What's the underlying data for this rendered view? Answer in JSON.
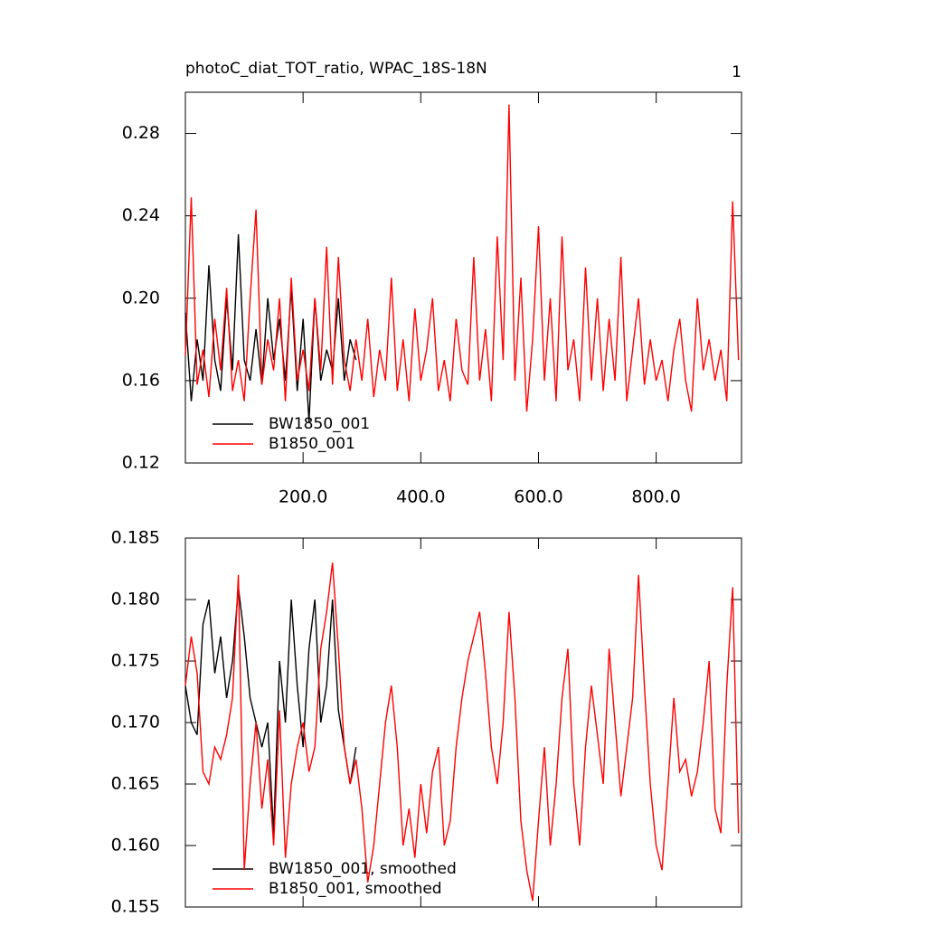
{
  "chart_data": [
    {
      "type": "line",
      "title": "photoC_diat_TOT_ratio, WPAC_18S-18N",
      "annotation": "1",
      "xlim": [
        0,
        945
      ],
      "ylim": [
        0.12,
        0.3
      ],
      "xticks": [
        {
          "value": 200,
          "label": "200.0"
        },
        {
          "value": 400,
          "label": "400.0"
        },
        {
          "value": 600,
          "label": "600.0"
        },
        {
          "value": 800,
          "label": "800.0"
        }
      ],
      "yticks": [
        0.12,
        0.16,
        {
          "value": 0.2,
          "label": "0.20"
        },
        0.24,
        0.28
      ],
      "series": [
        {
          "name": "BW1850_001",
          "color": "#000000",
          "x": [
            0,
            10,
            20,
            30,
            40,
            50,
            60,
            70,
            80,
            90,
            100,
            110,
            120,
            130,
            140,
            150,
            160,
            170,
            180,
            190,
            200,
            210,
            220,
            230,
            240,
            250,
            260,
            270,
            280,
            290
          ],
          "values": [
            0.193,
            0.15,
            0.18,
            0.16,
            0.216,
            0.17,
            0.155,
            0.2,
            0.165,
            0.231,
            0.17,
            0.16,
            0.185,
            0.158,
            0.2,
            0.17,
            0.19,
            0.16,
            0.205,
            0.155,
            0.19,
            0.14,
            0.2,
            0.16,
            0.175,
            0.165,
            0.2,
            0.16,
            0.18,
            0.17
          ]
        },
        {
          "name": "B1850_001",
          "color": "#ff0000",
          "x": [
            0,
            10,
            20,
            30,
            40,
            50,
            60,
            70,
            80,
            90,
            100,
            110,
            120,
            130,
            140,
            150,
            160,
            170,
            180,
            190,
            200,
            210,
            220,
            230,
            240,
            250,
            260,
            270,
            280,
            290,
            300,
            310,
            320,
            330,
            340,
            350,
            360,
            370,
            380,
            390,
            400,
            410,
            420,
            430,
            440,
            450,
            460,
            470,
            480,
            490,
            500,
            510,
            520,
            530,
            540,
            550,
            560,
            570,
            580,
            590,
            600,
            610,
            620,
            630,
            640,
            650,
            660,
            670,
            680,
            690,
            700,
            710,
            720,
            730,
            740,
            750,
            760,
            770,
            780,
            790,
            800,
            810,
            820,
            830,
            840,
            850,
            860,
            870,
            880,
            890,
            900,
            910,
            920,
            930,
            940
          ],
          "values": [
            0.172,
            0.249,
            0.158,
            0.175,
            0.152,
            0.19,
            0.165,
            0.205,
            0.155,
            0.17,
            0.15,
            0.2,
            0.243,
            0.158,
            0.18,
            0.165,
            0.2,
            0.15,
            0.21,
            0.16,
            0.175,
            0.155,
            0.2,
            0.165,
            0.225,
            0.158,
            0.22,
            0.17,
            0.155,
            0.18,
            0.16,
            0.19,
            0.152,
            0.175,
            0.16,
            0.21,
            0.155,
            0.18,
            0.15,
            0.195,
            0.16,
            0.175,
            0.2,
            0.155,
            0.17,
            0.15,
            0.19,
            0.165,
            0.158,
            0.22,
            0.16,
            0.185,
            0.15,
            0.23,
            0.17,
            0.294,
            0.16,
            0.21,
            0.145,
            0.18,
            0.235,
            0.16,
            0.2,
            0.15,
            0.23,
            0.165,
            0.18,
            0.15,
            0.215,
            0.16,
            0.2,
            0.155,
            0.19,
            0.16,
            0.22,
            0.15,
            0.175,
            0.2,
            0.158,
            0.18,
            0.16,
            0.17,
            0.15,
            0.175,
            0.19,
            0.16,
            0.145,
            0.2,
            0.165,
            0.18,
            0.16,
            0.175,
            0.15,
            0.247,
            0.17
          ]
        }
      ]
    },
    {
      "type": "line",
      "xlim": [
        0,
        945
      ],
      "ylim": [
        0.155,
        0.185
      ],
      "xticks": [
        200,
        400,
        600,
        800
      ],
      "yticks": [
        0.155,
        {
          "value": 0.16,
          "label": "0.160"
        },
        0.165,
        {
          "value": 0.17,
          "label": "0.170"
        },
        0.175,
        {
          "value": 0.18,
          "label": "0.180"
        },
        0.185
      ],
      "series": [
        {
          "name": "BW1850_001, smoothed",
          "color": "#000000",
          "x": [
            0,
            10,
            20,
            30,
            40,
            50,
            60,
            70,
            80,
            90,
            100,
            110,
            120,
            130,
            140,
            150,
            160,
            170,
            180,
            190,
            200,
            210,
            220,
            230,
            240,
            250,
            260,
            270,
            280,
            290
          ],
          "values": [
            0.173,
            0.17,
            0.169,
            0.178,
            0.18,
            0.174,
            0.177,
            0.172,
            0.175,
            0.181,
            0.177,
            0.172,
            0.17,
            0.168,
            0.17,
            0.161,
            0.175,
            0.17,
            0.18,
            0.173,
            0.168,
            0.176,
            0.18,
            0.17,
            0.173,
            0.18,
            0.171,
            0.168,
            0.165,
            0.168
          ]
        },
        {
          "name": "B1850_001, smoothed",
          "color": "#ff0000",
          "x": [
            0,
            10,
            20,
            30,
            40,
            50,
            60,
            70,
            80,
            90,
            100,
            110,
            120,
            130,
            140,
            150,
            160,
            170,
            180,
            190,
            200,
            210,
            220,
            230,
            240,
            250,
            260,
            270,
            280,
            290,
            300,
            310,
            320,
            330,
            340,
            350,
            360,
            370,
            380,
            390,
            400,
            410,
            420,
            430,
            440,
            450,
            460,
            470,
            480,
            490,
            500,
            510,
            520,
            530,
            540,
            550,
            560,
            570,
            580,
            590,
            600,
            610,
            620,
            630,
            640,
            650,
            660,
            670,
            680,
            690,
            700,
            710,
            720,
            730,
            740,
            750,
            760,
            770,
            780,
            790,
            800,
            810,
            820,
            830,
            840,
            850,
            860,
            870,
            880,
            890,
            900,
            910,
            920,
            930,
            940
          ],
          "values": [
            0.173,
            0.177,
            0.174,
            0.166,
            0.165,
            0.168,
            0.167,
            0.169,
            0.172,
            0.182,
            0.158,
            0.165,
            0.17,
            0.163,
            0.167,
            0.16,
            0.171,
            0.159,
            0.165,
            0.168,
            0.17,
            0.166,
            0.168,
            0.176,
            0.179,
            0.183,
            0.176,
            0.168,
            0.165,
            0.167,
            0.163,
            0.157,
            0.16,
            0.165,
            0.17,
            0.173,
            0.168,
            0.16,
            0.163,
            0.159,
            0.165,
            0.161,
            0.166,
            0.168,
            0.16,
            0.162,
            0.168,
            0.172,
            0.175,
            0.177,
            0.179,
            0.174,
            0.168,
            0.165,
            0.17,
            0.179,
            0.172,
            0.162,
            0.158,
            0.1555,
            0.162,
            0.168,
            0.16,
            0.165,
            0.172,
            0.176,
            0.165,
            0.16,
            0.168,
            0.173,
            0.169,
            0.165,
            0.176,
            0.17,
            0.164,
            0.168,
            0.172,
            0.182,
            0.173,
            0.165,
            0.16,
            0.158,
            0.165,
            0.172,
            0.166,
            0.167,
            0.164,
            0.166,
            0.17,
            0.175,
            0.163,
            0.161,
            0.173,
            0.181,
            0.161
          ]
        }
      ]
    }
  ]
}
